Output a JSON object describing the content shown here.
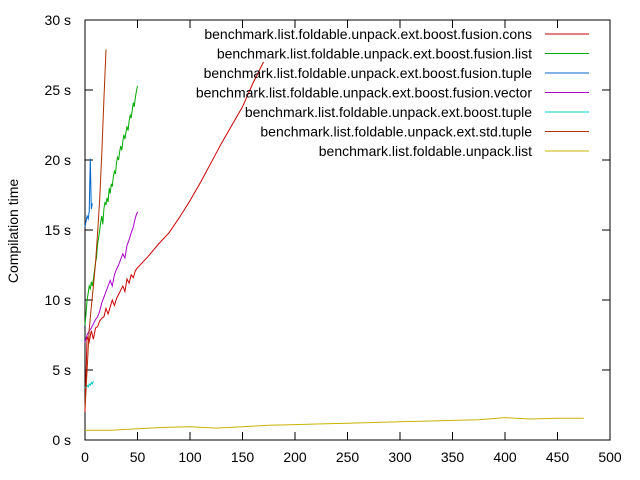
{
  "chart_data": {
    "type": "line",
    "title": "",
    "xlabel": "",
    "ylabel": "Compilation time",
    "xlim": [
      0,
      500
    ],
    "ylim": [
      0,
      30
    ],
    "grid": false,
    "legend_position": "top-right",
    "x_ticks": [
      {
        "value": 0,
        "label": "0"
      },
      {
        "value": 50,
        "label": "50"
      },
      {
        "value": 100,
        "label": "100"
      },
      {
        "value": 150,
        "label": "150"
      },
      {
        "value": 200,
        "label": "200"
      },
      {
        "value": 250,
        "label": "250"
      },
      {
        "value": 300,
        "label": "300"
      },
      {
        "value": 350,
        "label": "350"
      },
      {
        "value": 400,
        "label": "400"
      },
      {
        "value": 450,
        "label": "450"
      },
      {
        "value": 500,
        "label": "500"
      }
    ],
    "y_ticks": [
      {
        "value": 0,
        "label": "0 s"
      },
      {
        "value": 5,
        "label": "5 s"
      },
      {
        "value": 10,
        "label": "10 s"
      },
      {
        "value": 15,
        "label": "15 s"
      },
      {
        "value": 20,
        "label": "20 s"
      },
      {
        "value": 25,
        "label": "25 s"
      },
      {
        "value": 30,
        "label": "30 s"
      }
    ],
    "series": [
      {
        "name": "benchmark.list.foldable.unpack.ext.boost.fusion.cons",
        "color": "#cc0000",
        "x": [
          0,
          2,
          4,
          6,
          8,
          10,
          12,
          14,
          16,
          18,
          20,
          22,
          24,
          26,
          28,
          30,
          32,
          34,
          36,
          38,
          40,
          42,
          44,
          46,
          48,
          50,
          60,
          70,
          80,
          90,
          100,
          110,
          120,
          130,
          140,
          150,
          160,
          170
        ],
        "y": [
          2.0,
          7.4,
          7.0,
          7.8,
          7.2,
          8.0,
          8.1,
          8.5,
          8.7,
          8.8,
          9.4,
          9.0,
          9.5,
          10.0,
          9.6,
          10.1,
          10.4,
          10.7,
          11.0,
          10.6,
          11.5,
          11.2,
          11.8,
          11.6,
          12.1,
          12.3,
          13.1,
          14.0,
          14.8,
          15.9,
          17.1,
          18.4,
          19.8,
          21.2,
          22.5,
          23.8,
          25.5,
          27.0
        ]
      },
      {
        "name": "benchmark.list.foldable.unpack.ext.boost.fusion.list",
        "color": "#00aa00",
        "x": [
          0,
          1,
          2,
          3,
          4,
          5,
          6,
          7,
          8,
          9,
          10,
          11,
          12,
          13,
          14,
          15,
          16,
          17,
          18,
          19,
          20,
          21,
          22,
          23,
          24,
          25,
          26,
          27,
          28,
          29,
          30,
          31,
          32,
          33,
          34,
          35,
          36,
          37,
          38,
          39,
          40,
          41,
          42,
          43,
          44,
          45,
          46,
          47,
          48,
          49,
          50
        ],
        "y": [
          8.2,
          9.0,
          10.0,
          10.5,
          11.0,
          10.8,
          11.3,
          11.0,
          11.5,
          12.1,
          12.7,
          13.0,
          14.0,
          14.5,
          15.0,
          15.6,
          16.0,
          15.4,
          16.5,
          17.0,
          16.8,
          17.3,
          17.0,
          18.0,
          17.6,
          18.3,
          18.1,
          18.8,
          19.2,
          19.0,
          19.8,
          20.2,
          20.0,
          20.6,
          21.0,
          20.7,
          21.3,
          21.8,
          21.5,
          22.0,
          22.4,
          22.1,
          22.8,
          23.2,
          23.0,
          23.6,
          24.1,
          23.8,
          24.5,
          24.9,
          25.3
        ]
      },
      {
        "name": "benchmark.list.foldable.unpack.ext.boost.fusion.tuple",
        "color": "#0066cc",
        "x": [
          0,
          1,
          2,
          3,
          4,
          5,
          6,
          7
        ],
        "y": [
          15.2,
          15.6,
          16.0,
          15.8,
          16.3,
          20.1,
          16.5,
          16.9
        ]
      },
      {
        "name": "benchmark.list.foldable.unpack.ext.boost.fusion.vector",
        "color": "#aa00cc",
        "x": [
          0,
          2,
          4,
          6,
          8,
          10,
          12,
          14,
          16,
          18,
          20,
          22,
          24,
          26,
          28,
          30,
          32,
          34,
          36,
          38,
          40,
          42,
          44,
          46,
          48,
          50
        ],
        "y": [
          7.0,
          7.5,
          7.8,
          8.0,
          8.3,
          8.6,
          8.8,
          9.2,
          9.8,
          10.2,
          10.6,
          11.0,
          11.4,
          11.0,
          11.8,
          12.2,
          12.5,
          12.9,
          13.3,
          13.0,
          13.9,
          14.3,
          14.8,
          15.2,
          15.9,
          16.3
        ]
      },
      {
        "name": "benchmark.list.foldable.unpack.ext.boost.tuple",
        "color": "#00cccc",
        "x": [
          0,
          1,
          2,
          3,
          4,
          5,
          6,
          7,
          8
        ],
        "y": [
          3.7,
          3.8,
          3.9,
          3.8,
          4.0,
          3.9,
          4.1,
          4.0,
          4.2
        ]
      },
      {
        "name": "benchmark.list.foldable.unpack.ext.std.tuple",
        "color": "#b03000",
        "x": [
          0,
          2,
          4,
          6,
          8,
          10,
          12,
          14,
          16,
          18,
          20
        ],
        "y": [
          2.2,
          5.0,
          7.9,
          9.5,
          11.0,
          12.6,
          14.8,
          17.2,
          20.5,
          24.3,
          27.9
        ]
      },
      {
        "name": "benchmark.list.foldable.unpack.list",
        "color": "#c8b400",
        "x": [
          0,
          25,
          50,
          75,
          100,
          125,
          150,
          175,
          200,
          225,
          250,
          275,
          300,
          325,
          350,
          375,
          400,
          410,
          425,
          450,
          475
        ],
        "y": [
          0.7,
          0.7,
          0.8,
          0.9,
          0.95,
          0.85,
          0.95,
          1.05,
          1.1,
          1.15,
          1.2,
          1.25,
          1.3,
          1.35,
          1.4,
          1.45,
          1.6,
          1.55,
          1.5,
          1.55,
          1.55
        ]
      }
    ]
  }
}
